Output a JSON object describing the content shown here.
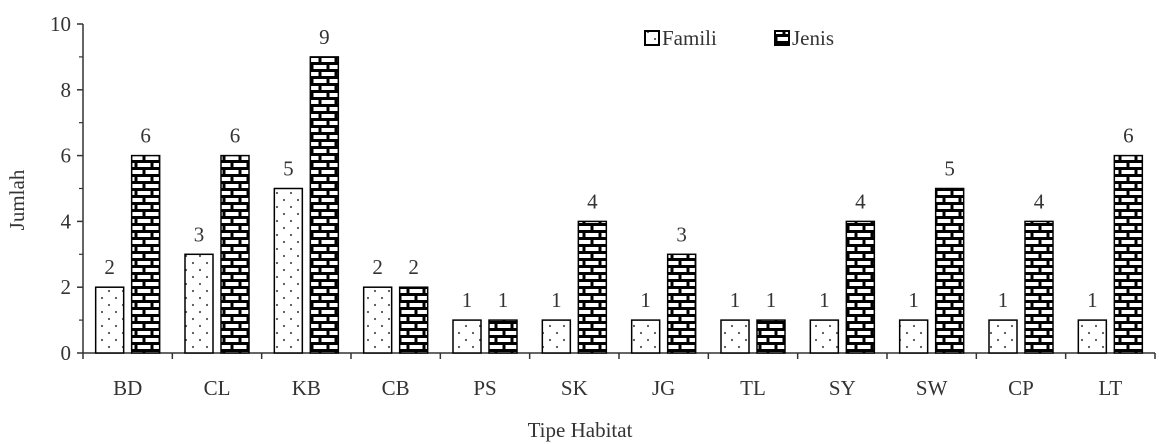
{
  "chart_data": {
    "type": "bar",
    "xlabel": "Tipe Habitat",
    "ylabel": "Jumlah",
    "ylim": [
      0,
      10
    ],
    "yticks": [
      0,
      2,
      4,
      6,
      8,
      10
    ],
    "grid": false,
    "legend_position": "top-right",
    "categories": [
      "BD",
      "CL",
      "KB",
      "CB",
      "PS",
      "SK",
      "JG",
      "TL",
      "SY",
      "SW",
      "CP",
      "LT"
    ],
    "series": [
      {
        "name": "Famili",
        "values": [
          2,
          3,
          5,
          2,
          1,
          1,
          1,
          1,
          1,
          1,
          1,
          1
        ],
        "pattern": "dots",
        "color": "#333333"
      },
      {
        "name": "Jenis",
        "values": [
          6,
          6,
          9,
          2,
          1,
          4,
          3,
          1,
          4,
          5,
          4,
          6
        ],
        "pattern": "brick",
        "color": "#000000"
      }
    ]
  }
}
